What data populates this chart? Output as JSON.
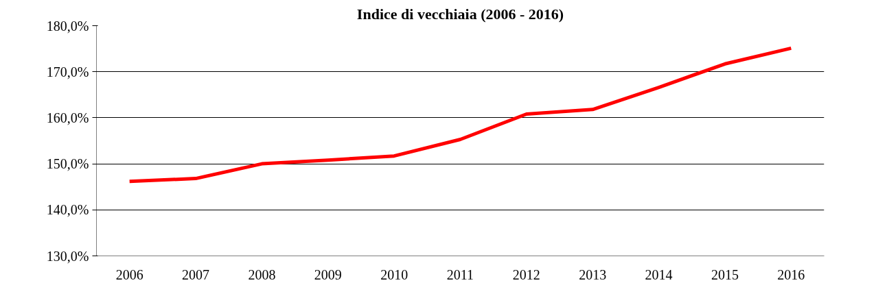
{
  "chart_data": {
    "type": "line",
    "title": "Indice di vecchiaia (2006 - 2016)",
    "categories": [
      "2006",
      "2007",
      "2008",
      "2009",
      "2010",
      "2011",
      "2012",
      "2013",
      "2014",
      "2015",
      "2016"
    ],
    "series": [
      {
        "color": "#ff0000",
        "values": [
          146.2,
          146.8,
          150.0,
          150.8,
          151.7,
          155.3,
          160.8,
          161.8,
          166.6,
          171.7,
          175.1
        ]
      }
    ],
    "ylim": [
      130,
      180
    ],
    "yticks": [
      {
        "value": 130,
        "label": "130,0%"
      },
      {
        "value": 140,
        "label": "140,0%"
      },
      {
        "value": 150,
        "label": "150,0%"
      },
      {
        "value": 160,
        "label": "160,0%"
      },
      {
        "value": 170,
        "label": "170,0%"
      },
      {
        "value": 180,
        "label": "180,0%"
      }
    ],
    "grid": "y",
    "marker": "none",
    "line_style": "solid"
  }
}
